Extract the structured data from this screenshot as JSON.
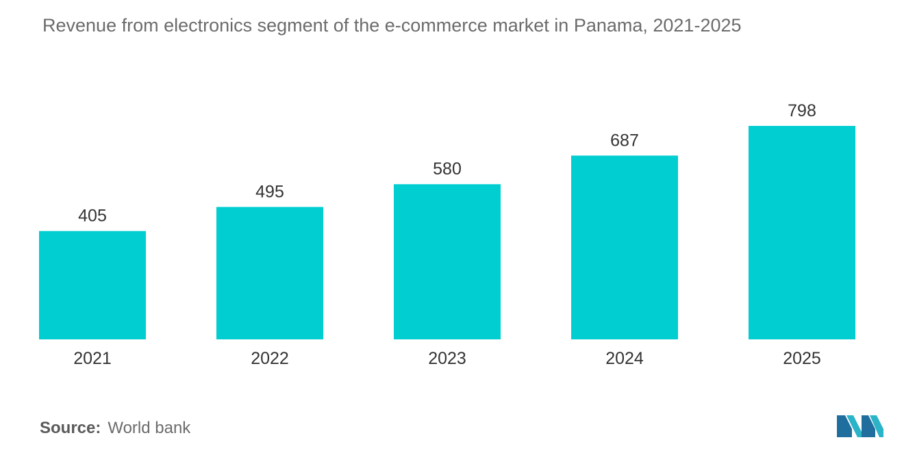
{
  "chart_data": {
    "type": "bar",
    "title": "Revenue from electronics segment of the e-commerce market in Panama, 2021-2025",
    "categories": [
      "2021",
      "2022",
      "2023",
      "2024",
      "2025"
    ],
    "values": [
      405,
      495,
      580,
      687,
      798
    ],
    "xlabel": "",
    "ylabel": "",
    "ylim": [
      0,
      820
    ],
    "grid": false,
    "legend": "none",
    "bar_color": "#00ced1",
    "data_labels": true
  },
  "source": {
    "label": "Source:",
    "text": "World bank"
  },
  "logo": {
    "icon": "mordor-intelligence-logo-icon",
    "colors": [
      "#1f6e9e",
      "#2bb3c8"
    ]
  }
}
